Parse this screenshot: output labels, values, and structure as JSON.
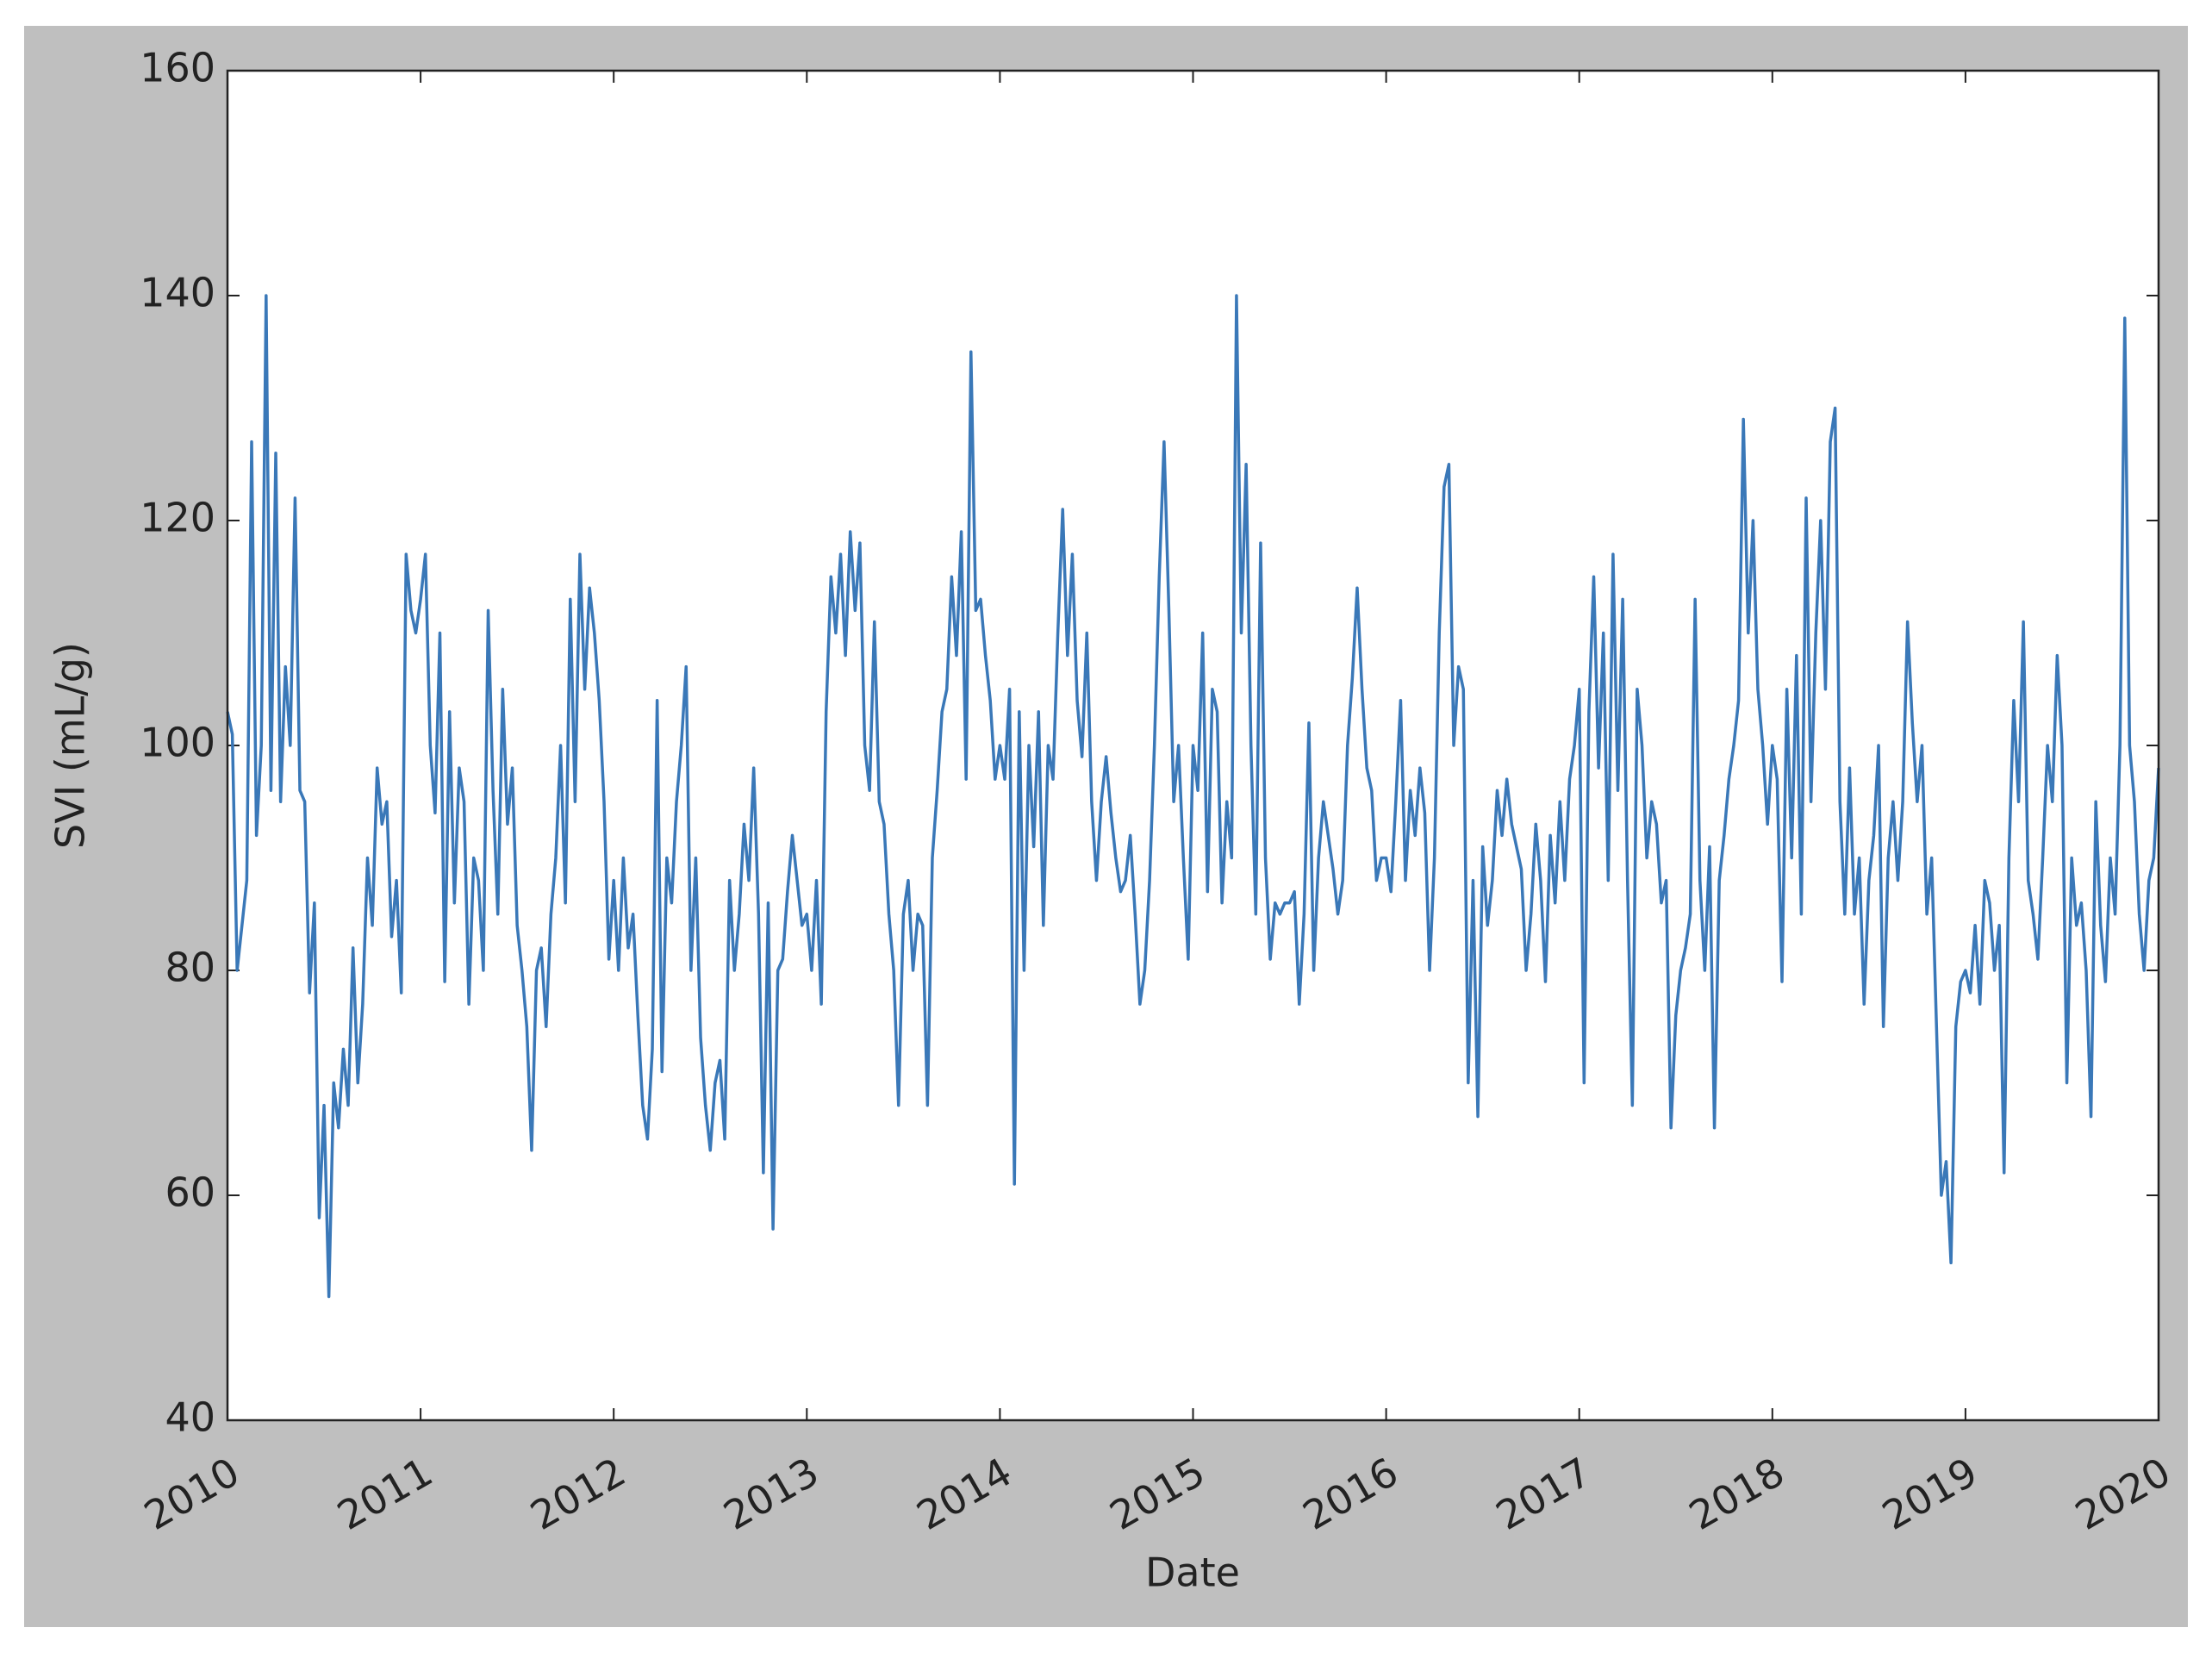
{
  "chart_data": {
    "type": "line",
    "xlabel": "Date",
    "ylabel": "SVI (mL/g)",
    "color": "#3a78b8",
    "xlim": [
      2010,
      2020
    ],
    "ylim": [
      40,
      160
    ],
    "xticks": [
      2010,
      2011,
      2012,
      2013,
      2014,
      2015,
      2016,
      2017,
      2018,
      2019,
      2020
    ],
    "yticks": [
      40,
      60,
      80,
      100,
      120,
      140,
      160
    ],
    "x": [
      2010,
      2010.025,
      2010.05,
      2010.075,
      2010.1,
      2010.125,
      2010.15,
      2010.175,
      2010.2,
      2010.225,
      2010.25,
      2010.275,
      2010.3,
      2010.325,
      2010.35,
      2010.375,
      2010.4,
      2010.425,
      2010.45,
      2010.475,
      2010.5,
      2010.525,
      2010.55,
      2010.575,
      2010.6,
      2010.625,
      2010.65,
      2010.675,
      2010.7,
      2010.725,
      2010.75,
      2010.775,
      2010.8,
      2010.825,
      2010.85,
      2010.875,
      2010.9,
      2010.925,
      2010.95,
      2010.975,
      2011,
      2011.025,
      2011.05,
      2011.075,
      2011.1,
      2011.125,
      2011.15,
      2011.175,
      2011.2,
      2011.225,
      2011.25,
      2011.275,
      2011.3,
      2011.325,
      2011.35,
      2011.375,
      2011.4,
      2011.425,
      2011.45,
      2011.475,
      2011.5,
      2011.525,
      2011.55,
      2011.575,
      2011.6,
      2011.625,
      2011.65,
      2011.675,
      2011.7,
      2011.725,
      2011.75,
      2011.775,
      2011.8,
      2011.825,
      2011.85,
      2011.875,
      2011.9,
      2011.925,
      2011.95,
      2011.975,
      2012,
      2012.025,
      2012.05,
      2012.075,
      2012.1,
      2012.125,
      2012.15,
      2012.175,
      2012.2,
      2012.225,
      2012.25,
      2012.275,
      2012.3,
      2012.325,
      2012.35,
      2012.375,
      2012.4,
      2012.425,
      2012.45,
      2012.475,
      2012.5,
      2012.525,
      2012.55,
      2012.575,
      2012.6,
      2012.625,
      2012.65,
      2012.675,
      2012.7,
      2012.725,
      2012.75,
      2012.775,
      2012.8,
      2012.825,
      2012.85,
      2012.875,
      2012.9,
      2012.925,
      2012.95,
      2012.975,
      2013,
      2013.025,
      2013.05,
      2013.075,
      2013.1,
      2013.125,
      2013.15,
      2013.175,
      2013.2,
      2013.225,
      2013.25,
      2013.275,
      2013.3,
      2013.325,
      2013.35,
      2013.375,
      2013.4,
      2013.425,
      2013.45,
      2013.475,
      2013.5,
      2013.525,
      2013.55,
      2013.575,
      2013.6,
      2013.625,
      2013.65,
      2013.675,
      2013.7,
      2013.725,
      2013.75,
      2013.775,
      2013.8,
      2013.825,
      2013.85,
      2013.875,
      2013.9,
      2013.925,
      2013.95,
      2013.975,
      2014,
      2014.025,
      2014.05,
      2014.075,
      2014.1,
      2014.125,
      2014.15,
      2014.175,
      2014.2,
      2014.225,
      2014.25,
      2014.275,
      2014.3,
      2014.325,
      2014.35,
      2014.375,
      2014.4,
      2014.425,
      2014.45,
      2014.475,
      2014.5,
      2014.525,
      2014.55,
      2014.575,
      2014.6,
      2014.625,
      2014.65,
      2014.675,
      2014.7,
      2014.725,
      2014.75,
      2014.775,
      2014.8,
      2014.825,
      2014.85,
      2014.875,
      2014.9,
      2014.925,
      2014.95,
      2014.975,
      2015,
      2015.025,
      2015.05,
      2015.075,
      2015.1,
      2015.125,
      2015.15,
      2015.175,
      2015.2,
      2015.225,
      2015.25,
      2015.275,
      2015.3,
      2015.325,
      2015.35,
      2015.375,
      2015.4,
      2015.425,
      2015.45,
      2015.475,
      2015.5,
      2015.525,
      2015.55,
      2015.575,
      2015.6,
      2015.625,
      2015.65,
      2015.675,
      2015.7,
      2015.725,
      2015.75,
      2015.775,
      2015.8,
      2015.825,
      2015.85,
      2015.875,
      2015.9,
      2015.925,
      2015.95,
      2015.975,
      2016,
      2016.025,
      2016.05,
      2016.075,
      2016.1,
      2016.125,
      2016.15,
      2016.175,
      2016.2,
      2016.225,
      2016.25,
      2016.275,
      2016.3,
      2016.325,
      2016.35,
      2016.375,
      2016.4,
      2016.425,
      2016.45,
      2016.475,
      2016.5,
      2016.525,
      2016.55,
      2016.575,
      2016.6,
      2016.625,
      2016.65,
      2016.675,
      2016.7,
      2016.725,
      2016.75,
      2016.775,
      2016.8,
      2016.825,
      2016.85,
      2016.875,
      2016.9,
      2016.925,
      2016.95,
      2016.975,
      2017,
      2017.025,
      2017.05,
      2017.075,
      2017.1,
      2017.125,
      2017.15,
      2017.175,
      2017.2,
      2017.225,
      2017.25,
      2017.275,
      2017.3,
      2017.325,
      2017.35,
      2017.375,
      2017.4,
      2017.425,
      2017.45,
      2017.475,
      2017.5,
      2017.525,
      2017.55,
      2017.575,
      2017.6,
      2017.625,
      2017.65,
      2017.675,
      2017.7,
      2017.725,
      2017.75,
      2017.775,
      2017.8,
      2017.825,
      2017.85,
      2017.875,
      2017.9,
      2017.925,
      2017.95,
      2017.975,
      2018,
      2018.025,
      2018.05,
      2018.075,
      2018.1,
      2018.125,
      2018.15,
      2018.175,
      2018.2,
      2018.225,
      2018.25,
      2018.275,
      2018.3,
      2018.325,
      2018.35,
      2018.375,
      2018.4,
      2018.425,
      2018.45,
      2018.475,
      2018.5,
      2018.525,
      2018.55,
      2018.575,
      2018.6,
      2018.625,
      2018.65,
      2018.675,
      2018.7,
      2018.725,
      2018.75,
      2018.775,
      2018.8,
      2018.825,
      2018.85,
      2018.875,
      2018.9,
      2018.925,
      2018.95,
      2018.975,
      2019,
      2019.025,
      2019.05,
      2019.075,
      2019.1,
      2019.125,
      2019.15,
      2019.175,
      2019.2,
      2019.225,
      2019.25,
      2019.275,
      2019.3,
      2019.325,
      2019.35,
      2019.375,
      2019.4,
      2019.425,
      2019.45,
      2019.475,
      2019.5,
      2019.525,
      2019.55,
      2019.575,
      2019.6,
      2019.625,
      2019.65,
      2019.675,
      2019.7,
      2019.725,
      2019.75,
      2019.775,
      2019.8,
      2019.825,
      2019.85,
      2019.875,
      2019.9,
      2019.925,
      2019.95,
      2019.975,
      2020
    ],
    "values": [
      103,
      101,
      80,
      84,
      88,
      127,
      92,
      100,
      140,
      96,
      126,
      95,
      107,
      100,
      122,
      96,
      95,
      78,
      86,
      58,
      68,
      51,
      70,
      66,
      73,
      68,
      82,
      70,
      77,
      90,
      84,
      98,
      93,
      95,
      83,
      88,
      78,
      117,
      112,
      110,
      113,
      117,
      100,
      94,
      110,
      79,
      103,
      86,
      98,
      95,
      77,
      90,
      88,
      80,
      112,
      96,
      85,
      105,
      93,
      98,
      84,
      80,
      75,
      64,
      80,
      82,
      75,
      85,
      90,
      100,
      86,
      113,
      95,
      117,
      105,
      114,
      110,
      104,
      95,
      81,
      88,
      80,
      90,
      82,
      85,
      76,
      68,
      65,
      73,
      104,
      71,
      90,
      86,
      95,
      100,
      107,
      80,
      90,
      74,
      68,
      64,
      70,
      72,
      65,
      88,
      80,
      85,
      93,
      88,
      98,
      85,
      62,
      86,
      57,
      80,
      81,
      87,
      92,
      88,
      84,
      85,
      80,
      88,
      77,
      103,
      115,
      110,
      117,
      108,
      119,
      112,
      118,
      100,
      96,
      111,
      95,
      93,
      85,
      80,
      68,
      85,
      88,
      80,
      85,
      84,
      68,
      90,
      96,
      103,
      105,
      115,
      108,
      119,
      97,
      135,
      112,
      113,
      108,
      104,
      97,
      100,
      97,
      105,
      61,
      103,
      80,
      100,
      91,
      103,
      84,
      100,
      97,
      110,
      121,
      108,
      117,
      104,
      99,
      110,
      95,
      88,
      95,
      99,
      94,
      90,
      87,
      88,
      92,
      85,
      77,
      80,
      88,
      100,
      115,
      127,
      112,
      95,
      100,
      90,
      81,
      100,
      96,
      110,
      87,
      105,
      103,
      86,
      95,
      90,
      140,
      110,
      125,
      100,
      85,
      118,
      90,
      81,
      86,
      85,
      86,
      86,
      87,
      77,
      85,
      102,
      80,
      90,
      95,
      92,
      89,
      85,
      88,
      100,
      106,
      114,
      105,
      98,
      96,
      88,
      90,
      90,
      87,
      95,
      104,
      88,
      96,
      92,
      98,
      94,
      80,
      90,
      110,
      123,
      125,
      100,
      107,
      105,
      70,
      88,
      67,
      91,
      84,
      88,
      96,
      92,
      97,
      93,
      91,
      89,
      80,
      85,
      93,
      88,
      79,
      92,
      86,
      95,
      88,
      97,
      100,
      105,
      70,
      103,
      115,
      98,
      110,
      88,
      117,
      96,
      113,
      88,
      68,
      105,
      100,
      90,
      95,
      93,
      86,
      88,
      66,
      76,
      80,
      82,
      85,
      113,
      88,
      80,
      91,
      66,
      88,
      92,
      97,
      100,
      104,
      129,
      110,
      120,
      105,
      100,
      93,
      100,
      97,
      79,
      105,
      90,
      108,
      85,
      122,
      95,
      110,
      120,
      105,
      127,
      130,
      95,
      85,
      98,
      85,
      90,
      77,
      88,
      92,
      100,
      75,
      90,
      95,
      88,
      95,
      111,
      102,
      95,
      100,
      85,
      90,
      75,
      60,
      63,
      54,
      75,
      79,
      80,
      78,
      84,
      77,
      88,
      86,
      80,
      84,
      62,
      90,
      104,
      95,
      111,
      88,
      85,
      81,
      90,
      100,
      95,
      108,
      100,
      70,
      90,
      84,
      86,
      80,
      67,
      95,
      84,
      79,
      90,
      85,
      100,
      138,
      100,
      95,
      85,
      80,
      88,
      90,
      98
    ]
  }
}
